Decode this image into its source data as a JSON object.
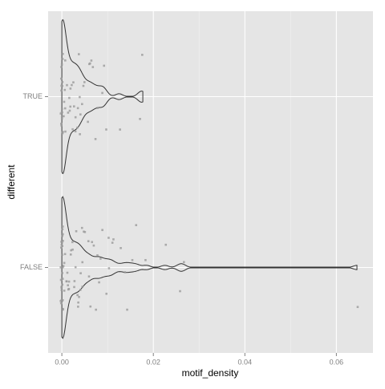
{
  "chart_data": {
    "type": "violin",
    "xlabel": "motif_density",
    "ylabel": "different",
    "categories": [
      "TRUE",
      "FALSE"
    ],
    "values": [
      [
        0,
        0,
        0,
        0,
        0,
        0,
        0,
        0,
        0,
        0,
        0,
        0,
        0,
        0,
        0,
        0,
        0,
        0,
        0,
        0,
        0.0002,
        0.0003,
        0.0005,
        0.0008,
        0.001,
        0.0012,
        0.0015,
        0.0018,
        0.002,
        0.0022,
        0.0025,
        0.0028,
        0.003,
        0.0033,
        0.0035,
        0.0038,
        0.004,
        0.0042,
        0.0045,
        0.005,
        0.0055,
        0.006,
        0.0065,
        0.007,
        0.0075,
        0.008,
        0.0088,
        0.009,
        0.0095,
        0.0125,
        0.0172,
        0.0177,
        0.001,
        0.002,
        0.003,
        0.0015,
        0.0025,
        0.0045,
        0.006,
        0.0035,
        0.0005
      ],
      [
        0,
        0,
        0,
        0,
        0,
        0,
        0,
        0,
        0,
        0,
        0,
        0,
        0,
        0,
        0,
        0,
        0,
        0,
        0,
        0,
        0,
        0,
        0,
        0,
        0,
        0,
        0.0002,
        0.0003,
        0.0005,
        0.0007,
        0.001,
        0.0012,
        0.0015,
        0.0018,
        0.002,
        0.0022,
        0.0025,
        0.0028,
        0.003,
        0.0032,
        0.0035,
        0.0038,
        0.004,
        0.0043,
        0.0046,
        0.005,
        0.0053,
        0.0057,
        0.006,
        0.0065,
        0.007,
        0.0075,
        0.008,
        0.0085,
        0.009,
        0.0095,
        0.01,
        0.0105,
        0.011,
        0.0115,
        0.0128,
        0.0138,
        0.0145,
        0.0155,
        0.0165,
        0.0185,
        0.0225,
        0.0257,
        0.0265,
        0.0645,
        0.001,
        0.002,
        0.003,
        0.004,
        0.0015,
        0.0025,
        0.0035,
        0.0045,
        0.006,
        0.008,
        0.0005,
        0.0012
      ]
    ],
    "point_color": "#9a9a9a",
    "violin_color": "#333333",
    "xlim": [
      -0.003,
      0.068
    ],
    "xticks": [
      {
        "value": 0,
        "label": "0.00"
      },
      {
        "value": 0.02,
        "label": "0.02"
      },
      {
        "value": 0.04,
        "label": "0.04"
      },
      {
        "value": 0.06,
        "label": "0.06"
      }
    ],
    "x_minor_ticks": [
      0.01,
      0.03,
      0.05
    ],
    "grid": true
  }
}
